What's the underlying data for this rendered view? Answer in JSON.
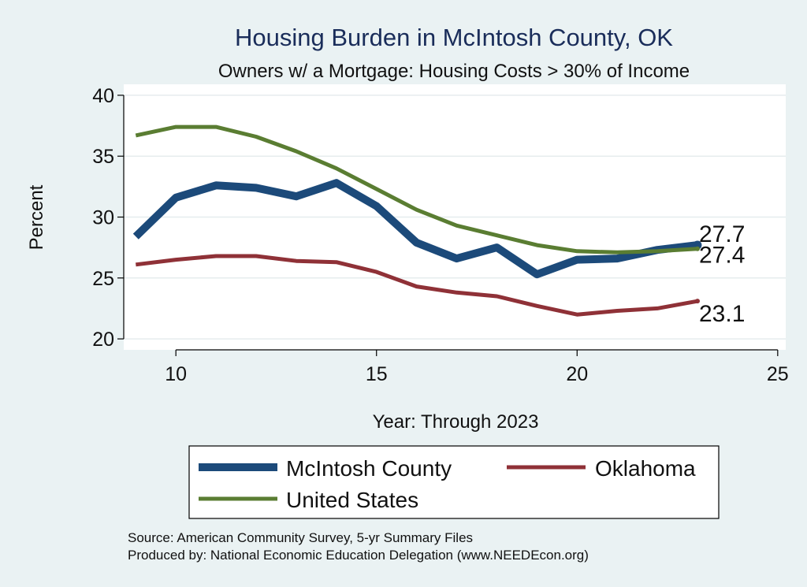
{
  "chart_data": {
    "type": "line",
    "title": "Housing Burden in McIntosh County, OK",
    "subtitle": "Owners w/ a Mortgage: Housing Costs > 30% of Income",
    "xlabel": "Year: Through 2023",
    "ylabel": "Percent",
    "xlim": [
      8.7,
      25.2
    ],
    "ylim": [
      19.1,
      40.9
    ],
    "xticks": [
      10,
      15,
      20,
      25
    ],
    "yticks": [
      20,
      25,
      30,
      35,
      40
    ],
    "grid": true,
    "legend_position": "bottom",
    "series": [
      {
        "name": "McIntosh County",
        "color": "#1c4a7a",
        "x": [
          9,
          10,
          11,
          12,
          13,
          14,
          15,
          16,
          17,
          18,
          19,
          20,
          21,
          22,
          23
        ],
        "values": [
          28.4,
          31.6,
          32.6,
          32.4,
          31.7,
          32.8,
          30.9,
          27.9,
          26.6,
          27.5,
          25.3,
          26.5,
          26.6,
          27.3,
          27.7
        ],
        "end_label": "27.7"
      },
      {
        "name": "Oklahoma",
        "color": "#8f3137",
        "x": [
          9,
          10,
          11,
          12,
          13,
          14,
          15,
          16,
          17,
          18,
          19,
          20,
          21,
          22,
          23
        ],
        "values": [
          26.1,
          26.5,
          26.8,
          26.8,
          26.4,
          26.3,
          25.5,
          24.3,
          23.8,
          23.5,
          22.7,
          22.0,
          22.3,
          22.5,
          23.1
        ],
        "end_label": "23.1"
      },
      {
        "name": "United States",
        "color": "#5a7d32",
        "x": [
          9,
          10,
          11,
          12,
          13,
          14,
          15,
          16,
          17,
          18,
          19,
          20,
          21,
          22,
          23
        ],
        "values": [
          36.7,
          37.4,
          37.4,
          36.6,
          35.4,
          34.0,
          32.3,
          30.6,
          29.3,
          28.5,
          27.7,
          27.2,
          27.1,
          27.2,
          27.4
        ],
        "end_label": "27.4"
      }
    ],
    "notes": [
      "Source: American Community Survey, 5-yr Summary Files",
      "Produced by: National Economic Education Delegation (www.NEEDEcon.org)"
    ]
  }
}
